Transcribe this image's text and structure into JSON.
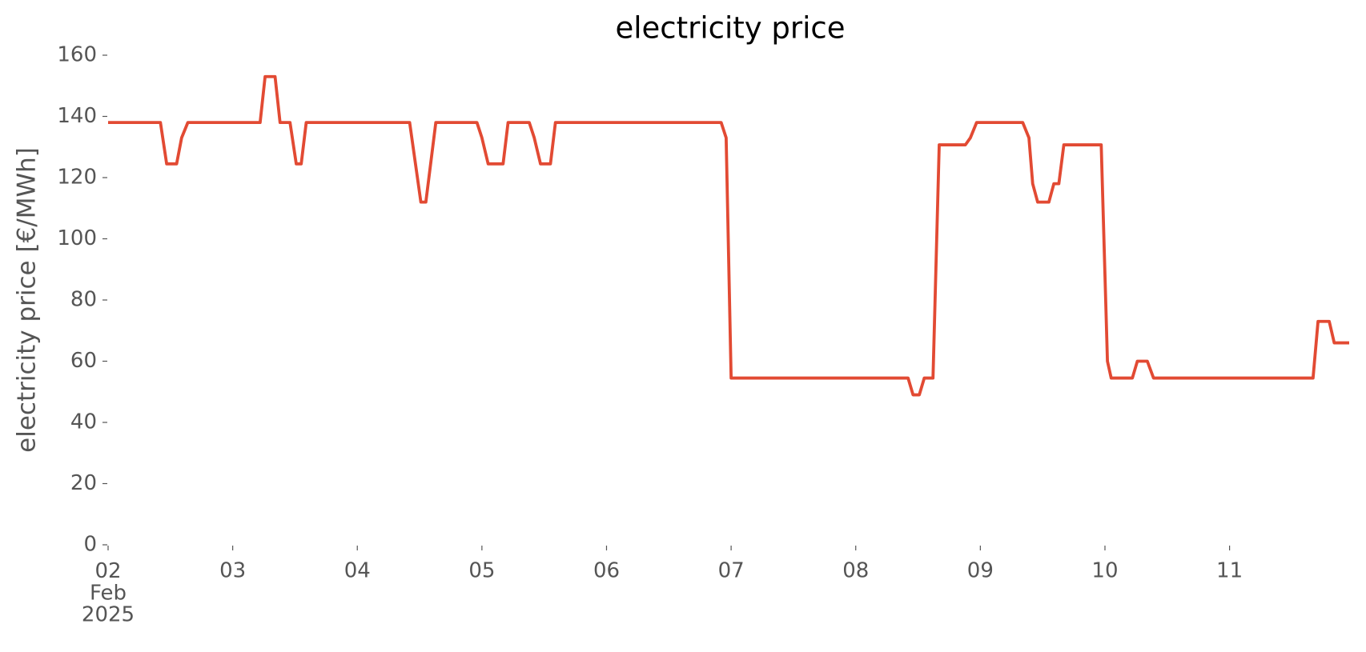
{
  "chart_data": {
    "type": "line",
    "title": "electricity price",
    "ylabel": "electricity price [€/MWh]",
    "series": [
      {
        "name": "electricity price",
        "color": "#E24A33",
        "x": [
          2.0,
          2.42,
          2.47,
          2.55,
          2.59,
          2.64,
          3.22,
          3.26,
          3.34,
          3.38,
          3.46,
          3.51,
          3.55,
          3.59,
          4.42,
          4.51,
          4.55,
          4.63,
          4.96,
          5.0,
          5.05,
          5.17,
          5.21,
          5.38,
          5.42,
          5.47,
          5.55,
          5.59,
          6.92,
          6.96,
          7.0,
          8.42,
          8.46,
          8.51,
          8.55,
          8.62,
          8.67,
          8.88,
          8.92,
          8.97,
          9.34,
          9.39,
          9.42,
          9.46,
          9.55,
          9.59,
          9.63,
          9.67,
          9.97,
          10.02,
          10.05,
          10.22,
          10.26,
          10.34,
          10.39,
          11.67,
          11.71,
          11.8,
          11.84,
          11.96
        ],
        "values": [
          138,
          138,
          124.5,
          124.5,
          133,
          138,
          138,
          153,
          153,
          138,
          138,
          124.5,
          124.5,
          138,
          138,
          112,
          112,
          138,
          138,
          133,
          124.5,
          124.5,
          138,
          138,
          133,
          124.5,
          124.5,
          138,
          138,
          133,
          54.5,
          54.5,
          49,
          49,
          54.5,
          54.5,
          130.7,
          130.7,
          133,
          138,
          138,
          133,
          118,
          112,
          112,
          118,
          118,
          130.7,
          130.7,
          60,
          54.5,
          54.5,
          60,
          60,
          54.5,
          54.5,
          73,
          73,
          66,
          66
        ]
      }
    ],
    "xlim": [
      2,
      11.96
    ],
    "xticks": [
      {
        "value": 2,
        "label": "02\nFeb\n2025"
      },
      {
        "value": 3,
        "label": "03"
      },
      {
        "value": 4,
        "label": "04"
      },
      {
        "value": 5,
        "label": "05"
      },
      {
        "value": 6,
        "label": "06"
      },
      {
        "value": 7,
        "label": "07"
      },
      {
        "value": 8,
        "label": "08"
      },
      {
        "value": 9,
        "label": "09"
      },
      {
        "value": 10,
        "label": "10"
      },
      {
        "value": 11,
        "label": "11"
      }
    ],
    "ylim": [
      0,
      160
    ],
    "yticks": [
      0,
      20,
      40,
      60,
      80,
      100,
      120,
      140,
      160
    ],
    "grid": false
  }
}
